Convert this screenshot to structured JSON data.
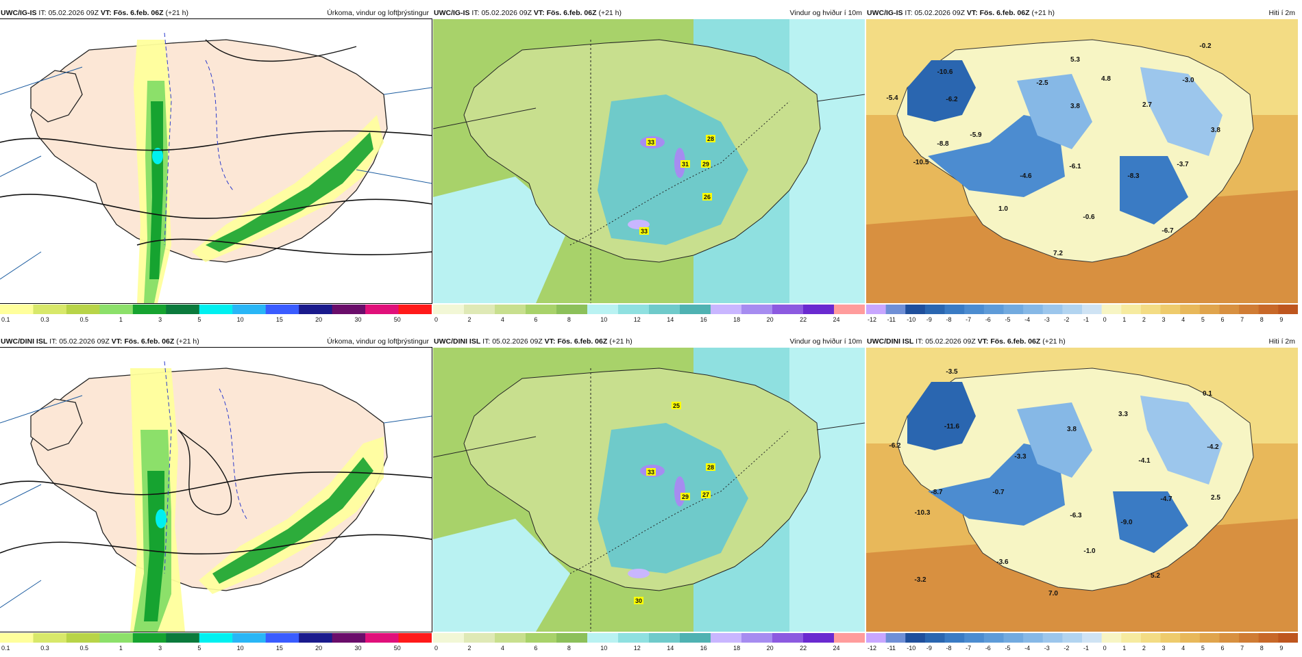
{
  "panels": [
    {
      "model": "UWC/IG-IS",
      "it_label": "IT:",
      "it": "05.02.2026 09Z",
      "vt_label": "VT:",
      "vt": "Fös. 6.feb. 06Z",
      "lead": "(+21 h)",
      "title": "Úrkoma, vindur og loftþrýstingur",
      "legend": [
        "0.1",
        "0.3",
        "0.5",
        "1",
        "3",
        "5",
        "10",
        "15",
        "20",
        "30",
        "50"
      ]
    },
    {
      "model": "UWC/IG-IS",
      "it_label": "IT:",
      "it": "05.02.2026 09Z",
      "vt_label": "VT:",
      "vt": "Fös. 6.feb. 06Z",
      "lead": "(+21 h)",
      "title": "Vindur og hviður í 10m",
      "legend": [
        "0",
        "2",
        "4",
        "6",
        "8",
        "10",
        "12",
        "14",
        "16",
        "18",
        "20",
        "22",
        "24"
      ],
      "gusts": [
        "33",
        "28",
        "31",
        "29",
        "33",
        "26"
      ]
    },
    {
      "model": "UWC/IG-IS",
      "it_label": "IT:",
      "it": "05.02.2026 09Z",
      "vt_label": "VT:",
      "vt": "Fös. 6.feb. 06Z",
      "lead": "(+21 h)",
      "title": "Hiti í 2m",
      "legend": [
        "-12",
        "-11",
        "-10",
        "-9",
        "-8",
        "-7",
        "-6",
        "-5",
        "-4",
        "-3",
        "-2",
        "-1",
        "0",
        "1",
        "2",
        "3",
        "4",
        "5",
        "6",
        "7",
        "8",
        "9"
      ],
      "temps": [
        "-0.2",
        "5.3",
        "-10.6",
        "4.8",
        "-3.0",
        "-2.5",
        "-5.4",
        "-6.2",
        "2.7",
        "3.8",
        "3.8",
        "-8.8",
        "-5.9",
        "-10.5",
        "-6.1",
        "-3.7",
        "-4.6",
        "-8.3",
        "1.0",
        "-0.6",
        "-6.7",
        "7.2"
      ]
    },
    {
      "model": "UWC/DINI ISL",
      "it_label": "IT:",
      "it": "05.02.2026 09Z",
      "vt_label": "VT:",
      "vt": "Fös. 6.feb. 06Z",
      "lead": "(+21 h)",
      "title": "Úrkoma, vindur og loftþrýstingur",
      "legend": [
        "0.1",
        "0.3",
        "0.5",
        "1",
        "3",
        "5",
        "10",
        "15",
        "20",
        "30",
        "50"
      ]
    },
    {
      "model": "UWC/DINI ISL",
      "it_label": "IT:",
      "it": "05.02.2026 09Z",
      "vt_label": "VT:",
      "vt": "Fös. 6.feb. 06Z",
      "lead": "(+21 h)",
      "title": "Vindur og hviður í 10m",
      "legend": [
        "0",
        "2",
        "4",
        "6",
        "8",
        "10",
        "12",
        "14",
        "16",
        "18",
        "20",
        "22",
        "24"
      ],
      "gusts": [
        "25",
        "33",
        "28",
        "29",
        "27",
        "30"
      ]
    },
    {
      "model": "UWC/DINI ISL",
      "it_label": "IT:",
      "it": "05.02.2026 09Z",
      "vt_label": "VT:",
      "vt": "Fös. 6.feb. 06Z",
      "lead": "(+21 h)",
      "title": "Hiti í 2m",
      "legend": [
        "-12",
        "-11",
        "-10",
        "-9",
        "-8",
        "-7",
        "-6",
        "-5",
        "-4",
        "-3",
        "-2",
        "-1",
        "0",
        "1",
        "2",
        "3",
        "4",
        "5",
        "6",
        "7",
        "8",
        "9"
      ],
      "temps": [
        "-3.5",
        "0.1",
        "3.3",
        "-11.6",
        "3.8",
        "-6.2",
        "-4.2",
        "-3.3",
        "-4.1",
        "-0.7",
        "-8.7",
        "-4.7",
        "2.5",
        "-10.3",
        "-6.3",
        "-9.0",
        "-1.0",
        "-3.6",
        "-3.2",
        "5.2",
        "7.0"
      ]
    }
  ],
  "colors": {
    "precip": [
      "#ffff9c",
      "#d8e86a",
      "#b8d448",
      "#8ce06a",
      "#16a330",
      "#0b7a3c",
      "#00f0f0",
      "#29b6f6",
      "#3a5cff",
      "#1a1a8c",
      "#6a0d6a",
      "#e0107a",
      "#ff1a1a"
    ],
    "wind": [
      "#f2f7d6",
      "#dfe9b6",
      "#c8df8e",
      "#a8d26a",
      "#8cc05a",
      "#b9f2f2",
      "#8fe0e0",
      "#6fcaca",
      "#4fb2b2",
      "#c9b6ff",
      "#a68cf0",
      "#8c5ae0",
      "#6a2ad0",
      "#ff9c9c"
    ],
    "temp": [
      "#c8a6ff",
      "#6f8fd6",
      "#1f4f9c",
      "#2a66b0",
      "#3a7bc4",
      "#4c8cd0",
      "#5e9bd8",
      "#72aadf",
      "#86b8e6",
      "#9cc6ec",
      "#b2d4f0",
      "#cfe3f4",
      "#f7f5c4",
      "#f6eba0",
      "#f3dc84",
      "#eecb6c",
      "#e8b85a",
      "#e0a44c",
      "#d89040",
      "#d07c34",
      "#c86828",
      "#be561e"
    ]
  }
}
